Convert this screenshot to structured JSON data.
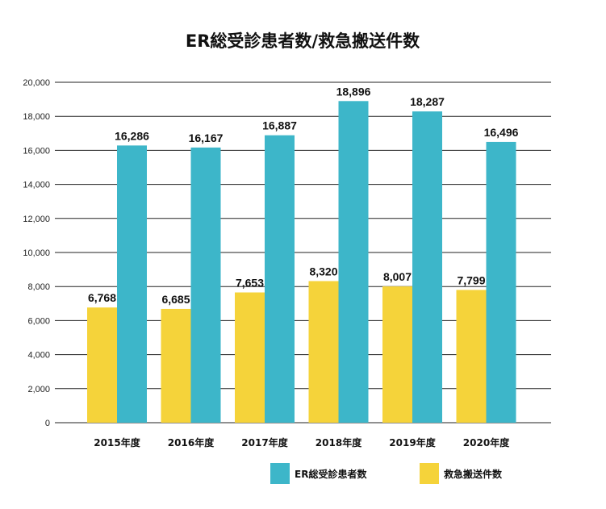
{
  "chart_data": {
    "type": "bar",
    "title": "ER総受診患者数/救急搬送件数",
    "categories": [
      "2015年度",
      "2016年度",
      "2017年度",
      "2018年度",
      "2019年度",
      "2020年度"
    ],
    "series": [
      {
        "name": "救急搬送件数",
        "color": "#f5d33a",
        "values": [
          6768,
          6685,
          7653,
          8320,
          8007,
          7799
        ]
      },
      {
        "name": "ER総受診患者数",
        "color": "#3db6c9",
        "values": [
          16286,
          16167,
          16887,
          18896,
          18287,
          16496
        ]
      }
    ],
    "ylim": [
      0,
      20000
    ],
    "yticks": [
      0,
      2000,
      4000,
      6000,
      8000,
      10000,
      12000,
      14000,
      16000,
      18000,
      20000
    ],
    "grid": true,
    "legend_position": "bottom",
    "legend_order": [
      1,
      0
    ]
  }
}
